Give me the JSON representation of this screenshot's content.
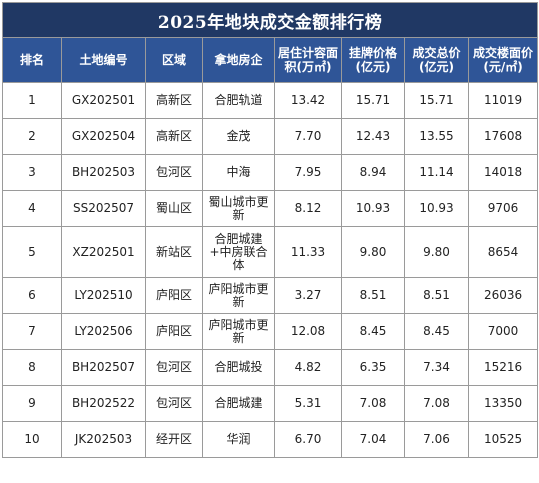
{
  "title": "2025年地块成交金额排行榜",
  "headers": [
    "排名",
    "土地编号",
    "区域",
    "拿地房企",
    "居住计容面积(万㎡)",
    "挂牌价格(亿元)",
    "成交总价(亿元)",
    "成交楼面价(元/㎡)"
  ],
  "rows": [
    {
      "rank": "1",
      "code": "GX202501",
      "district": "高新区",
      "developer": "合肥轨道",
      "area": "13.42",
      "list_price": "15.71",
      "deal_price": "15.71",
      "floor_price": "11019"
    },
    {
      "rank": "2",
      "code": "GX202504",
      "district": "高新区",
      "developer": "金茂",
      "area": "7.70",
      "list_price": "12.43",
      "deal_price": "13.55",
      "floor_price": "17608"
    },
    {
      "rank": "3",
      "code": "BH202503",
      "district": "包河区",
      "developer": "中海",
      "area": "7.95",
      "list_price": "8.94",
      "deal_price": "11.14",
      "floor_price": "14018"
    },
    {
      "rank": "4",
      "code": "SS202507",
      "district": "蜀山区",
      "developer": "蜀山城市更新",
      "area": "8.12",
      "list_price": "10.93",
      "deal_price": "10.93",
      "floor_price": "9706"
    },
    {
      "rank": "5",
      "code": "XZ202501",
      "district": "新站区",
      "developer": "合肥城建+中房联合体",
      "area": "11.33",
      "list_price": "9.80",
      "deal_price": "9.80",
      "floor_price": "8654"
    },
    {
      "rank": "6",
      "code": "LY202510",
      "district": "庐阳区",
      "developer": "庐阳城市更新",
      "area": "3.27",
      "list_price": "8.51",
      "deal_price": "8.51",
      "floor_price": "26036"
    },
    {
      "rank": "7",
      "code": "LY202506",
      "district": "庐阳区",
      "developer": "庐阳城市更新",
      "area": "12.08",
      "list_price": "8.45",
      "deal_price": "8.45",
      "floor_price": "7000"
    },
    {
      "rank": "8",
      "code": "BH202507",
      "district": "包河区",
      "developer": "合肥城投",
      "area": "4.82",
      "list_price": "6.35",
      "deal_price": "7.34",
      "floor_price": "15216"
    },
    {
      "rank": "9",
      "code": "BH202522",
      "district": "包河区",
      "developer": "合肥城建",
      "area": "5.31",
      "list_price": "7.08",
      "deal_price": "7.08",
      "floor_price": "13350"
    },
    {
      "rank": "10",
      "code": "JK202503",
      "district": "经开区",
      "developer": "华润",
      "area": "6.70",
      "list_price": "7.04",
      "deal_price": "7.06",
      "floor_price": "10525"
    }
  ]
}
